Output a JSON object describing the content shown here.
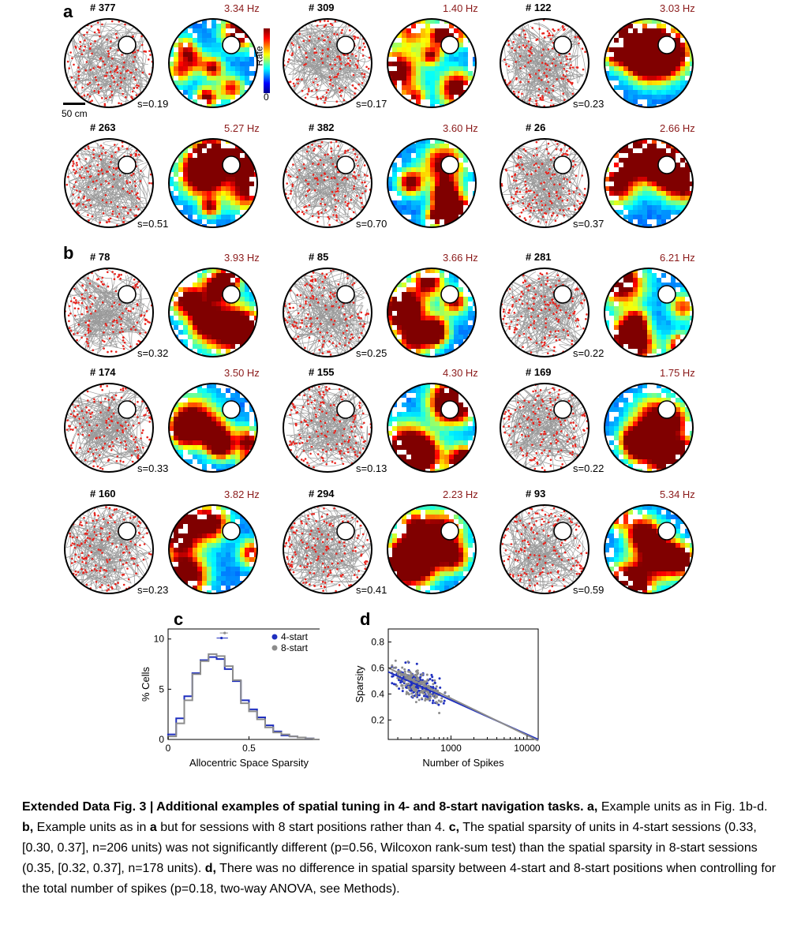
{
  "panels": {
    "a": "a",
    "b": "b",
    "c": "c",
    "d": "d"
  },
  "scale_bar": "50 cm",
  "colorbar": {
    "label": "Rate",
    "min": "0"
  },
  "units": [
    {
      "id": "# 377",
      "rate": "3.34 Hz",
      "s": "s=0.19",
      "seed": 3
    },
    {
      "id": "# 309",
      "rate": "1.40 Hz",
      "s": "s=0.17",
      "seed": 7
    },
    {
      "id": "# 122",
      "rate": "3.03 Hz",
      "s": "s=0.23",
      "seed": 11
    },
    {
      "id": "# 263",
      "rate": "5.27 Hz",
      "s": "s=0.51",
      "seed": 13
    },
    {
      "id": "# 382",
      "rate": "3.60 Hz",
      "s": "s=0.70",
      "seed": 17
    },
    {
      "id": "# 26",
      "rate": "2.66 Hz",
      "s": "s=0.37",
      "seed": 19
    },
    {
      "id": "# 78",
      "rate": "3.93 Hz",
      "s": "s=0.32",
      "seed": 23
    },
    {
      "id": "# 85",
      "rate": "3.66 Hz",
      "s": "s=0.25",
      "seed": 29
    },
    {
      "id": "# 281",
      "rate": "6.21 Hz",
      "s": "s=0.22",
      "seed": 31
    },
    {
      "id": "# 174",
      "rate": "3.50 Hz",
      "s": "s=0.33",
      "seed": 37
    },
    {
      "id": "# 155",
      "rate": "4.30 Hz",
      "s": "s=0.13",
      "seed": 41
    },
    {
      "id": "# 169",
      "rate": "1.75 Hz",
      "s": "s=0.22",
      "seed": 43
    },
    {
      "id": "# 160",
      "rate": "3.82 Hz",
      "s": "s=0.23",
      "seed": 47
    },
    {
      "id": "# 294",
      "rate": "2.23 Hz",
      "s": "s=0.41",
      "seed": 53
    },
    {
      "id": "# 93",
      "rate": "5.34 Hz",
      "s": "s=0.59",
      "seed": 59
    }
  ],
  "colors": {
    "spike": "#e8231c",
    "path": "#9a9a9a",
    "rate_label": "#8b1a1a",
    "series_4start": "#1f2fbf",
    "series_8start": "#8c8c8c"
  },
  "chart_data": [
    {
      "type": "line",
      "panel": "c",
      "xlabel": "Allocentric Space Sparsity",
      "ylabel": "% Cells",
      "xlim": [
        0,
        1
      ],
      "ylim": [
        0,
        11
      ],
      "xticks": [
        "0",
        "0.5",
        "1"
      ],
      "yticks": [
        "0",
        "5",
        "10"
      ],
      "legend_position": "top-right",
      "x": [
        0.025,
        0.075,
        0.125,
        0.175,
        0.225,
        0.275,
        0.325,
        0.375,
        0.425,
        0.475,
        0.525,
        0.575,
        0.625,
        0.675,
        0.725,
        0.775,
        0.825,
        0.875,
        0.925
      ],
      "series": [
        {
          "name": "4-start",
          "values": [
            0.5,
            2.1,
            4.3,
            6.6,
            7.9,
            8.2,
            8.0,
            7.0,
            5.8,
            3.9,
            3.0,
            2.2,
            1.4,
            0.8,
            0.4,
            0.3,
            0.2,
            0.1,
            0.0
          ]
        },
        {
          "name": "8-start",
          "values": [
            0.3,
            1.6,
            3.9,
            6.5,
            7.8,
            8.5,
            8.3,
            7.3,
            5.9,
            3.6,
            2.8,
            2.0,
            1.2,
            0.7,
            0.5,
            0.3,
            0.2,
            0.1,
            0.0
          ]
        }
      ],
      "summary": [
        {
          "series": "4-start",
          "median": 0.33,
          "ci": [
            0.3,
            0.37
          ],
          "y": 10.1
        },
        {
          "series": "8-start",
          "median": 0.35,
          "ci": [
            0.32,
            0.37
          ],
          "y": 10.6
        }
      ]
    },
    {
      "type": "scatter",
      "panel": "d",
      "xlabel": "Number of Spikes",
      "ylabel": "Sparsity",
      "xscale": "log",
      "xlim": [
        150,
        14000
      ],
      "ylim": [
        0.05,
        0.9
      ],
      "xticks": [
        "1000",
        "10000"
      ],
      "yticks": [
        "0.2",
        "0.4",
        "0.6",
        "0.8"
      ],
      "fit_lines": [
        {
          "series": "4-start",
          "x": [
            150,
            14000
          ],
          "y": [
            0.57,
            0.05
          ]
        },
        {
          "series": "8-start",
          "x": [
            150,
            14000
          ],
          "y": [
            0.6,
            0.04
          ]
        }
      ],
      "series": [
        {
          "name": "4-start",
          "n": 206
        },
        {
          "name": "8-start",
          "n": 178
        }
      ]
    }
  ],
  "caption": {
    "title": "Extended Data Fig. 3 | Additional examples of spatial tuning in 4- and 8-start navigation tasks.",
    "a_label": "a,",
    "a_text": "Example units as in Fig. 1b-d.",
    "b_label": "b,",
    "b_text1": "Example units as in",
    "b_ref": "a",
    "b_text2": "but for sessions with 8 start positions rather than 4.",
    "c_label": "c,",
    "c_text": "The spatial sparsity of units in 4-start sessions (0.33, [0.30, 0.37], n=206 units) was not significantly different (p=0.56, Wilcoxon rank-sum test) than the spatial sparsity in 8-start sessions (0.35, [0.32, 0.37], n=178 units).",
    "d_label": "d,",
    "d_text": "There was no difference in spatial sparsity between 4-start and 8-start positions when controlling for the total number of spikes (p=0.18, two-way ANOVA, see Methods)."
  }
}
